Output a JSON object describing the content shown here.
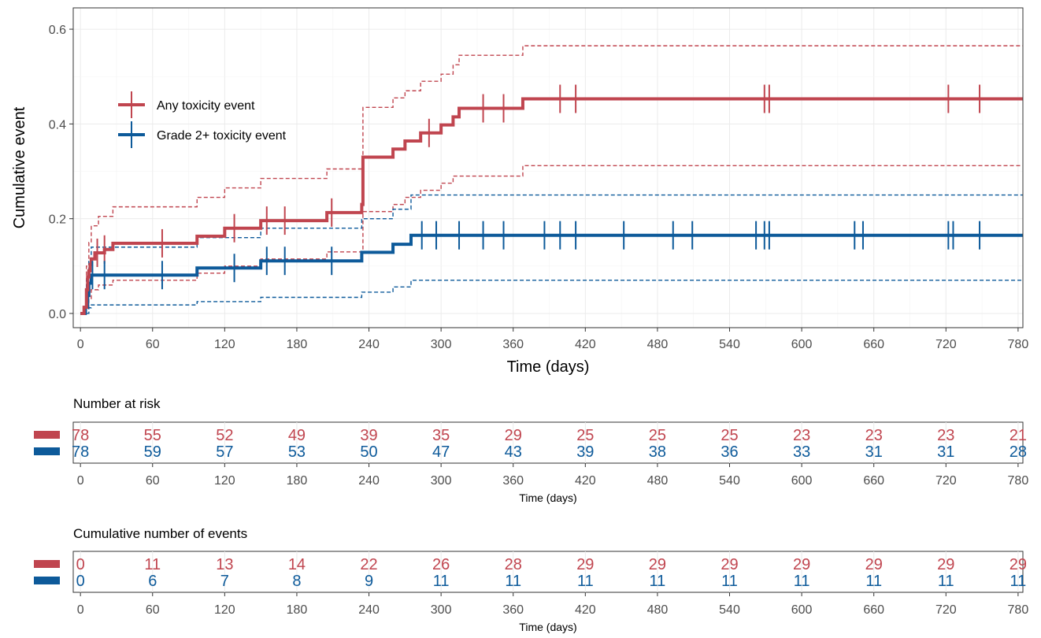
{
  "chart_data": [
    {
      "type": "line",
      "step": true,
      "xlabel": "Time (days)",
      "ylabel": "Cumulative event",
      "xlim": [
        -6,
        784
      ],
      "ylim": [
        -0.03,
        0.645
      ],
      "x_ticks": [
        0,
        60,
        120,
        180,
        240,
        300,
        360,
        420,
        480,
        540,
        600,
        660,
        720,
        780
      ],
      "y_ticks": [
        0.0,
        0.2,
        0.4,
        0.6
      ],
      "y_tick_labels": [
        "0.0",
        "0.2",
        "0.4",
        "0.6"
      ],
      "grid": true,
      "legend": "top-left",
      "series": [
        {
          "name": "Any toxicity event",
          "color": "#c0454f",
          "steps": [
            [
              0,
              0
            ],
            [
              3,
              0.013
            ],
            [
              5,
              0.05
            ],
            [
              6,
              0.077
            ],
            [
              7,
              0.09
            ],
            [
              8,
              0.103
            ],
            [
              9,
              0.115
            ],
            [
              12,
              0.128
            ],
            [
              20,
              0.135
            ],
            [
              27,
              0.148
            ],
            [
              97,
              0.163
            ],
            [
              120,
              0.18
            ],
            [
              150,
              0.196
            ],
            [
              205,
              0.213
            ],
            [
              234,
              0.23
            ],
            [
              235,
              0.33
            ],
            [
              260,
              0.347
            ],
            [
              270,
              0.364
            ],
            [
              283,
              0.381
            ],
            [
              300,
              0.398
            ],
            [
              310,
              0.415
            ],
            [
              315,
              0.433
            ],
            [
              368,
              0.453
            ],
            [
              784,
              0.453
            ]
          ],
          "upper": [
            [
              0,
              0
            ],
            [
              5,
              0.1
            ],
            [
              7,
              0.15
            ],
            [
              9,
              0.185
            ],
            [
              15,
              0.205
            ],
            [
              27,
              0.225
            ],
            [
              97,
              0.245
            ],
            [
              120,
              0.265
            ],
            [
              150,
              0.285
            ],
            [
              205,
              0.305
            ],
            [
              235,
              0.435
            ],
            [
              260,
              0.455
            ],
            [
              270,
              0.47
            ],
            [
              283,
              0.49
            ],
            [
              300,
              0.505
            ],
            [
              310,
              0.525
            ],
            [
              315,
              0.545
            ],
            [
              368,
              0.565
            ],
            [
              784,
              0.565
            ]
          ],
          "lower": [
            [
              0,
              0
            ],
            [
              5,
              0.008
            ],
            [
              7,
              0.03
            ],
            [
              9,
              0.05
            ],
            [
              15,
              0.06
            ],
            [
              27,
              0.07
            ],
            [
              97,
              0.085
            ],
            [
              120,
              0.1
            ],
            [
              150,
              0.115
            ],
            [
              205,
              0.13
            ],
            [
              235,
              0.215
            ],
            [
              260,
              0.23
            ],
            [
              270,
              0.245
            ],
            [
              283,
              0.26
            ],
            [
              300,
              0.275
            ],
            [
              310,
              0.29
            ],
            [
              368,
              0.312
            ],
            [
              784,
              0.312
            ]
          ],
          "censor_x": [
            14,
            20,
            68,
            128,
            155,
            170,
            209,
            290,
            335,
            352,
            399,
            412,
            569,
            573,
            722,
            748
          ]
        },
        {
          "name": "Grade 2+ toxicity event",
          "color": "#0d5a9a",
          "steps": [
            [
              0,
              0
            ],
            [
              4,
              0.013
            ],
            [
              6,
              0.038
            ],
            [
              7,
              0.064
            ],
            [
              9,
              0.081
            ],
            [
              97,
              0.096
            ],
            [
              150,
              0.111
            ],
            [
              234,
              0.129
            ],
            [
              260,
              0.146
            ],
            [
              275,
              0.165
            ],
            [
              784,
              0.165
            ]
          ],
          "upper": [
            [
              0,
              0
            ],
            [
              5,
              0.07
            ],
            [
              7,
              0.11
            ],
            [
              9,
              0.14
            ],
            [
              97,
              0.16
            ],
            [
              150,
              0.18
            ],
            [
              234,
              0.2
            ],
            [
              260,
              0.22
            ],
            [
              275,
              0.25
            ],
            [
              784,
              0.25
            ]
          ],
          "lower": [
            [
              0,
              0
            ],
            [
              5,
              0.0
            ],
            [
              7,
              0.012
            ],
            [
              9,
              0.018
            ],
            [
              97,
              0.025
            ],
            [
              150,
              0.034
            ],
            [
              234,
              0.045
            ],
            [
              260,
              0.056
            ],
            [
              275,
              0.07
            ],
            [
              784,
              0.07
            ]
          ],
          "censor_x": [
            10,
            20,
            68,
            128,
            155,
            170,
            209,
            284,
            296,
            315,
            335,
            352,
            386,
            399,
            412,
            452,
            493,
            509,
            562,
            569,
            573,
            644,
            651,
            722,
            726,
            748
          ]
        }
      ]
    },
    {
      "type": "table",
      "title": "Number at risk",
      "xlabel": "Time (days)",
      "x_ticks": [
        0,
        60,
        120,
        180,
        240,
        300,
        360,
        420,
        480,
        540,
        600,
        660,
        720,
        780
      ],
      "rows": [
        {
          "color": "#c0454f",
          "values": [
            "78",
            "55",
            "52",
            "49",
            "39",
            "35",
            "29",
            "25",
            "25",
            "25",
            "23",
            "23",
            "23",
            "21"
          ]
        },
        {
          "color": "#0d5a9a",
          "values": [
            "78",
            "59",
            "57",
            "53",
            "50",
            "47",
            "43",
            "39",
            "38",
            "36",
            "33",
            "31",
            "31",
            "28"
          ]
        }
      ]
    },
    {
      "type": "table",
      "title": "Cumulative number of events",
      "xlabel": "Time (days)",
      "x_ticks": [
        0,
        60,
        120,
        180,
        240,
        300,
        360,
        420,
        480,
        540,
        600,
        660,
        720,
        780
      ],
      "rows": [
        {
          "color": "#c0454f",
          "values": [
            "0",
            "11",
            "13",
            "14",
            "22",
            "26",
            "28",
            "29",
            "29",
            "29",
            "29",
            "29",
            "29",
            "29"
          ]
        },
        {
          "color": "#0d5a9a",
          "values": [
            "0",
            "6",
            "7",
            "8",
            "9",
            "11",
            "11",
            "11",
            "11",
            "11",
            "11",
            "11",
            "11",
            "11"
          ]
        }
      ]
    }
  ]
}
